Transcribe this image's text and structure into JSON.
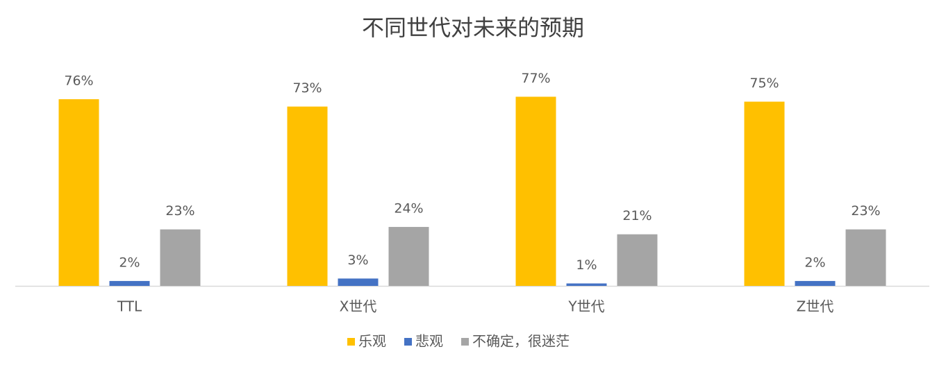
{
  "chart_data": {
    "type": "bar",
    "title": "不同世代对未来的预期",
    "categories": [
      "TTL",
      "X世代",
      "Y世代",
      "Z世代"
    ],
    "series": [
      {
        "name": "乐观",
        "color": "#FFC000",
        "values": [
          76,
          73,
          77,
          75
        ],
        "value_labels": [
          "76%",
          "73%",
          "77%",
          "75%"
        ]
      },
      {
        "name": "悲观",
        "color": "#4472C4",
        "values": [
          2,
          3,
          1,
          2
        ],
        "value_labels": [
          "2%",
          "3%",
          "1%",
          "2%"
        ]
      },
      {
        "name": "不确定，很迷茫",
        "color": "#A5A5A5",
        "values": [
          23,
          24,
          21,
          23
        ],
        "value_labels": [
          "23%",
          "24%",
          "21%",
          "23%"
        ]
      }
    ],
    "legend": "bottom"
  }
}
